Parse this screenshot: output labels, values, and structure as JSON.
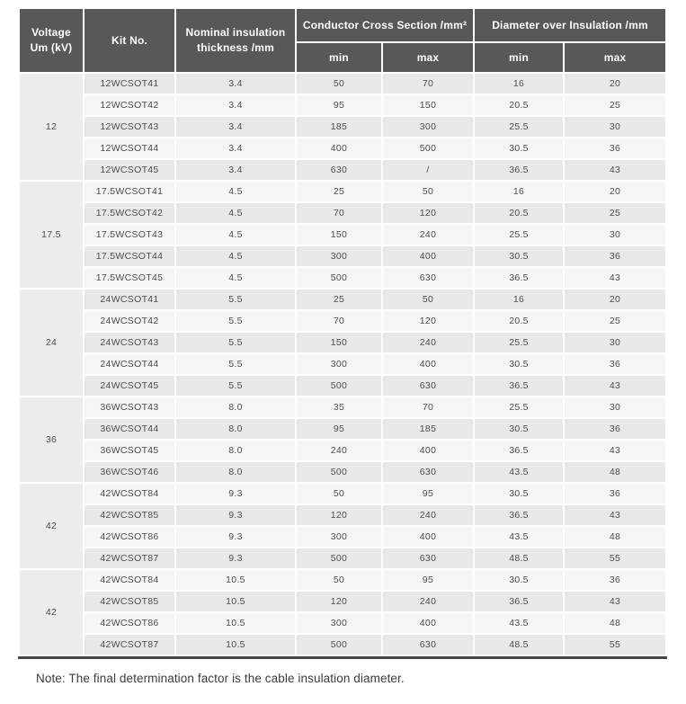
{
  "colors": {
    "header_bg": "#595757",
    "header_text": "#ffffff",
    "row_stripe_dark": "#e9e8e8",
    "row_stripe_light": "#f6f5f5",
    "voltage_cell_bg": "#ececec",
    "bottom_rule": "#454545",
    "body_text": "#4c4c52",
    "note_text": "#3c3c3c"
  },
  "table": {
    "header": {
      "voltage": "Voltage\nUm (kV)",
      "kit_no": "Kit No.",
      "nominal_thickness": "Nominal insulation\nthickness /mm",
      "conductor_cross_section": "Conductor Cross Section /mm²",
      "diameter_over_insulation": "Diameter over Insulation /mm",
      "sub": [
        "min",
        "max",
        "min",
        "max"
      ]
    },
    "groups": [
      {
        "voltage": "12",
        "rows": [
          [
            "12WCSOT41",
            "3.4",
            "50",
            "70",
            "16",
            "20"
          ],
          [
            "12WCSOT42",
            "3.4",
            "95",
            "150",
            "20.5",
            "25"
          ],
          [
            "12WCSOT43",
            "3.4",
            "185",
            "300",
            "25.5",
            "30"
          ],
          [
            "12WCSOT44",
            "3.4",
            "400",
            "500",
            "30.5",
            "36"
          ],
          [
            "12WCSOT45",
            "3.4",
            "630",
            "/",
            "36.5",
            "43"
          ]
        ]
      },
      {
        "voltage": "17.5",
        "rows": [
          [
            "17.5WCSOT41",
            "4.5",
            "25",
            "50",
            "16",
            "20"
          ],
          [
            "17.5WCSOT42",
            "4.5",
            "70",
            "120",
            "20.5",
            "25"
          ],
          [
            "17.5WCSOT43",
            "4.5",
            "150",
            "240",
            "25.5",
            "30"
          ],
          [
            "17.5WCSOT44",
            "4.5",
            "300",
            "400",
            "30.5",
            "36"
          ],
          [
            "17.5WCSOT45",
            "4.5",
            "500",
            "630",
            "36.5",
            "43"
          ]
        ]
      },
      {
        "voltage": "24",
        "rows": [
          [
            "24WCSOT41",
            "5.5",
            "25",
            "50",
            "16",
            "20"
          ],
          [
            "24WCSOT42",
            "5.5",
            "70",
            "120",
            "20.5",
            "25"
          ],
          [
            "24WCSOT43",
            "5.5",
            "150",
            "240",
            "25.5",
            "30"
          ],
          [
            "24WCSOT44",
            "5.5",
            "300",
            "400",
            "30.5",
            "36"
          ],
          [
            "24WCSOT45",
            "5.5",
            "500",
            "630",
            "36.5",
            "43"
          ]
        ]
      },
      {
        "voltage": "36",
        "rows": [
          [
            "36WCSOT43",
            "8.0",
            "35",
            "70",
            "25.5",
            "30"
          ],
          [
            "36WCSOT44",
            "8.0",
            "95",
            "185",
            "30.5",
            "36"
          ],
          [
            "36WCSOT45",
            "8.0",
            "240",
            "400",
            "36.5",
            "43"
          ],
          [
            "36WCSOT46",
            "8.0",
            "500",
            "630",
            "43.5",
            "48"
          ]
        ]
      },
      {
        "voltage": "42",
        "rows": [
          [
            "42WCSOT84",
            "9.3",
            "50",
            "95",
            "30.5",
            "36"
          ],
          [
            "42WCSOT85",
            "9.3",
            "120",
            "240",
            "36.5",
            "43"
          ],
          [
            "42WCSOT86",
            "9.3",
            "300",
            "400",
            "43.5",
            "48"
          ],
          [
            "42WCSOT87",
            "9.3",
            "500",
            "630",
            "48.5",
            "55"
          ]
        ]
      },
      {
        "voltage": "42",
        "rows": [
          [
            "42WCSOT84",
            "10.5",
            "50",
            "95",
            "30.5",
            "36"
          ],
          [
            "42WCSOT85",
            "10.5",
            "120",
            "240",
            "36.5",
            "43"
          ],
          [
            "42WCSOT86",
            "10.5",
            "300",
            "400",
            "43.5",
            "48"
          ],
          [
            "42WCSOT87",
            "10.5",
            "500",
            "630",
            "48.5",
            "55"
          ]
        ]
      }
    ]
  },
  "note": "Note: The final determination factor is the cable insulation diameter."
}
